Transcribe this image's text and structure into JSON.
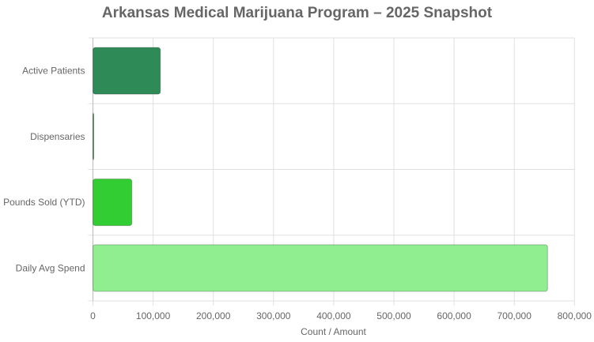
{
  "chart_data": {
    "type": "bar",
    "orientation": "horizontal",
    "title": "Arkansas Medical Marijuana Program – 2025 Snapshot",
    "xlabel": "Count / Amount",
    "ylabel": "",
    "categories": [
      "Active Patients",
      "Dispensaries",
      "Pounds Sold (YTD)",
      "Daily Avg Spend"
    ],
    "values": [
      112000,
      38,
      64600,
      755300
    ],
    "colors": [
      "#2e8b57",
      "#228b22",
      "#32cd32",
      "#90ee90"
    ],
    "xlim": [
      0,
      800000
    ],
    "xticks": [
      0,
      100000,
      200000,
      300000,
      400000,
      500000,
      600000,
      700000,
      800000
    ],
    "xtick_labels": [
      "0",
      "100,000",
      "200,000",
      "300,000",
      "400,000",
      "500,000",
      "600,000",
      "700,000",
      "800,000"
    ],
    "grid": true,
    "legend": "none"
  }
}
